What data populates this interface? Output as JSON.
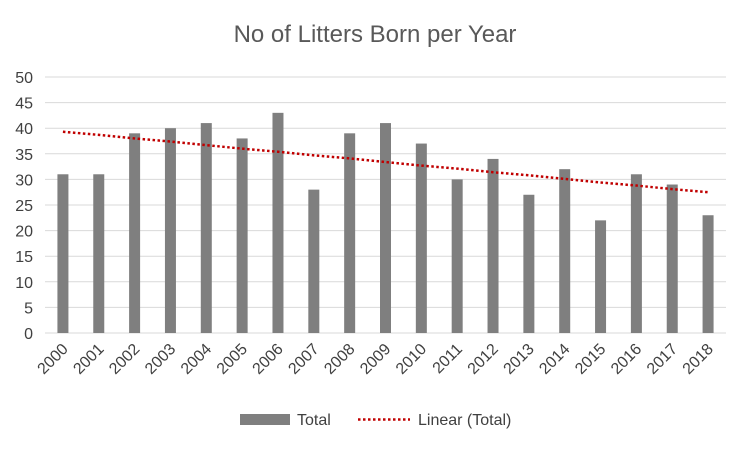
{
  "chart_data": {
    "type": "bar",
    "title": "No of Litters Born per Year",
    "xlabel": "",
    "ylabel": "",
    "ylim": [
      0,
      50
    ],
    "yticks": [
      0,
      5,
      10,
      15,
      20,
      25,
      30,
      35,
      40,
      45,
      50
    ],
    "grid": true,
    "legend_position": "bottom",
    "categories": [
      "2000",
      "2001",
      "2002",
      "2003",
      "2004",
      "2005",
      "2006",
      "2007",
      "2008",
      "2009",
      "2010",
      "2011",
      "2012",
      "2013",
      "2014",
      "2015",
      "2016",
      "2017",
      "2018"
    ],
    "series": [
      {
        "name": "Total",
        "type": "bar",
        "color": "#7f7f7f",
        "values": [
          31,
          31,
          39,
          40,
          41,
          38,
          43,
          28,
          39,
          41,
          37,
          30,
          34,
          27,
          32,
          22,
          31,
          29,
          23
        ]
      },
      {
        "name": "Linear (Total)",
        "type": "trendline",
        "style": "dotted",
        "color": "#c00000",
        "values": [
          39.3,
          38.7,
          38.0,
          37.4,
          36.7,
          36.0,
          35.4,
          34.7,
          34.1,
          33.4,
          32.7,
          32.1,
          31.4,
          30.8,
          30.1,
          29.4,
          28.8,
          28.1,
          27.5
        ]
      }
    ]
  }
}
